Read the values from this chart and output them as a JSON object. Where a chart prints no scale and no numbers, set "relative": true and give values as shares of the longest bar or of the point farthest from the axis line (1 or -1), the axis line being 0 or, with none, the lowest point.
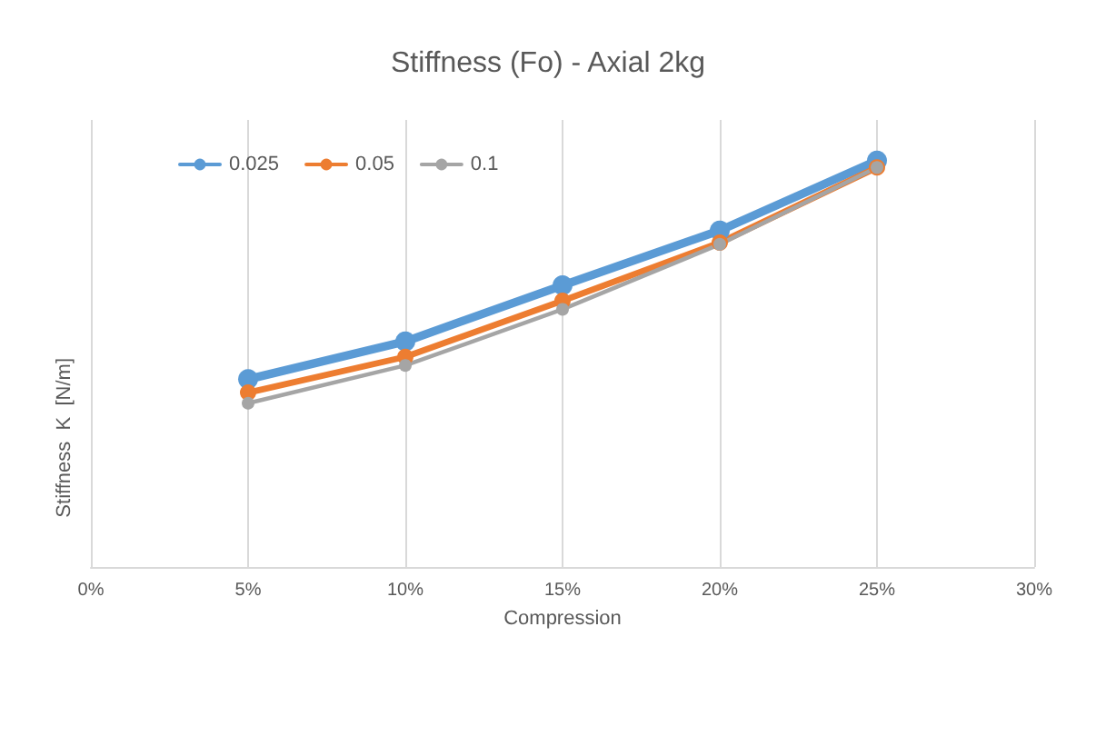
{
  "chart_data": {
    "type": "line",
    "title": "Stiffness (Fo) - Axial 2kg",
    "xlabel": "Compression",
    "ylabel": "Stiffness  K  [N/m]",
    "relative": true,
    "x": [
      5,
      10,
      15,
      20,
      25
    ],
    "series": [
      {
        "name": "0.025",
        "color": "#5b9bd5",
        "values": [
          0.462,
          0.555,
          0.693,
          0.828,
          1
        ]
      },
      {
        "name": "0.05",
        "color": "#ed7d31",
        "values": [
          0.429,
          0.517,
          0.655,
          0.798,
          0.983
        ]
      },
      {
        "name": "0.1",
        "color": "#a5a5a5",
        "values": [
          0.403,
          0.496,
          0.634,
          0.794,
          0.983
        ]
      }
    ],
    "xlim": [
      0,
      30
    ],
    "xticks": [
      {
        "value": 0,
        "label": "0%"
      },
      {
        "value": 5,
        "label": "5%"
      },
      {
        "value": 10,
        "label": "10%"
      },
      {
        "value": 15,
        "label": "15%"
      },
      {
        "value": 20,
        "label": "20%"
      },
      {
        "value": 25,
        "label": "25%"
      },
      {
        "value": 30,
        "label": "30%"
      }
    ],
    "grid": "x",
    "legend": "top left",
    "marker": "circle",
    "line_style": "solid"
  }
}
